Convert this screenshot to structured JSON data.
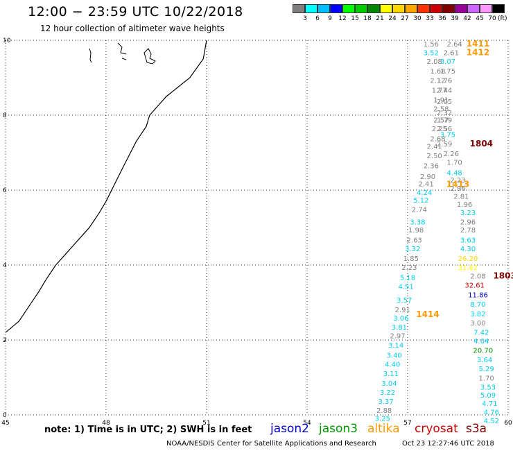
{
  "title": "12:00 − 23:59 UTC 10/22/2018",
  "subtitle": "12 hour collection of altimeter wave heights",
  "colorbar": {
    "colors": [
      "#7f7f7f",
      "#00ffff",
      "#00bfff",
      "#0000ff",
      "#00ff00",
      "#00cc00",
      "#008800",
      "#ffff00",
      "#ffd700",
      "#ffa500",
      "#ff3300",
      "#cc0000",
      "#800000",
      "#990099",
      "#cc66ff",
      "#ff99ff",
      "#000000"
    ],
    "ticks": [
      "3",
      "6",
      "9",
      "12",
      "15",
      "18",
      "21",
      "24",
      "27",
      "30",
      "33",
      "36",
      "39",
      "42",
      "45",
      "70"
    ],
    "unit": "(ft)"
  },
  "footer": {
    "note": "note:  1) Time is in UTC;  2) SWH is in feet",
    "credit": "NOAA/NESDIS Center for Satellite Applications and Research",
    "timestamp": "Oct 23 12:27:46 UTC 2018",
    "legend": [
      {
        "name": "jason2",
        "color": "#0000cc"
      },
      {
        "name": "jason3",
        "color": "#009900"
      },
      {
        "name": "altika",
        "color": "#ff9900"
      },
      {
        "name": "cryosat",
        "color": "#cc0000"
      },
      {
        "name": "s3a",
        "color": "#800000"
      }
    ]
  },
  "chart_data": {
    "type": "scatter",
    "xlim": [
      45,
      60
    ],
    "ylim": [
      0,
      10
    ],
    "xticks": [
      "45",
      "48",
      "51",
      "54",
      "57",
      "60"
    ],
    "yticks": [
      "0",
      "2",
      "4",
      "6",
      "8",
      "10"
    ],
    "grid": true,
    "coastline": [
      [
        51,
        10
      ],
      [
        50.9,
        9.5
      ],
      [
        50.5,
        9
      ],
      [
        49.8,
        8.5
      ],
      [
        49.3,
        8
      ],
      [
        49.2,
        7.7
      ],
      [
        48.9,
        7.3
      ],
      [
        48.5,
        6.6
      ],
      [
        48,
        5.7
      ],
      [
        47.8,
        5.4
      ],
      [
        47.5,
        5
      ],
      [
        47.2,
        4.7
      ],
      [
        47,
        4.5
      ],
      [
        46.8,
        4.3
      ],
      [
        46.5,
        4
      ],
      [
        46.2,
        3.6
      ],
      [
        46,
        3.3
      ],
      [
        45.7,
        2.9
      ],
      [
        45.4,
        2.5
      ],
      [
        45,
        2.2
      ]
    ],
    "labels": [
      {
        "x": 57.7,
        "y": 9.83,
        "text": "1.56",
        "color": "#7f7f7f"
      },
      {
        "x": 58.4,
        "y": 9.83,
        "text": "2.64",
        "color": "#7f7f7f"
      },
      {
        "x": 59.1,
        "y": 9.83,
        "text": "1411",
        "color": "#ff9900"
      },
      {
        "x": 57.7,
        "y": 9.6,
        "text": "3.52",
        "color": "#00ccee"
      },
      {
        "x": 58.3,
        "y": 9.6,
        "text": "2.61",
        "color": "#7f7f7f"
      },
      {
        "x": 59.1,
        "y": 9.6,
        "text": "1412",
        "color": "#ff9900"
      },
      {
        "x": 57.8,
        "y": 9.37,
        "text": "2.08",
        "color": "#7f7f7f"
      },
      {
        "x": 58.2,
        "y": 9.37,
        "text": "3.07",
        "color": "#00ccee"
      },
      {
        "x": 57.9,
        "y": 9.11,
        "text": "1.68",
        "color": "#7f7f7f"
      },
      {
        "x": 58.2,
        "y": 9.11,
        "text": "1.75",
        "color": "#7f7f7f"
      },
      {
        "x": 57.9,
        "y": 8.86,
        "text": "2.12",
        "color": "#7f7f7f"
      },
      {
        "x": 58.1,
        "y": 8.86,
        "text": "1.76",
        "color": "#7f7f7f"
      },
      {
        "x": 57.95,
        "y": 8.6,
        "text": "1.77",
        "color": "#7f7f7f"
      },
      {
        "x": 58.1,
        "y": 8.6,
        "text": "2.44",
        "color": "#7f7f7f"
      },
      {
        "x": 58.0,
        "y": 8.34,
        "text": "1.91",
        "color": "#7f7f7f"
      },
      {
        "x": 58.1,
        "y": 8.3,
        "text": "2.05",
        "color": "#7f7f7f"
      },
      {
        "x": 58.0,
        "y": 8.1,
        "text": "2.58",
        "color": "#7f7f7f"
      },
      {
        "x": 58.1,
        "y": 8.0,
        "text": "2.32",
        "color": "#7f7f7f"
      },
      {
        "x": 58.0,
        "y": 7.81,
        "text": "2.57",
        "color": "#7f7f7f"
      },
      {
        "x": 58.1,
        "y": 7.81,
        "text": "1.79",
        "color": "#7f7f7f"
      },
      {
        "x": 57.95,
        "y": 7.57,
        "text": "2.25",
        "color": "#7f7f7f"
      },
      {
        "x": 58.1,
        "y": 7.57,
        "text": "2.56",
        "color": "#7f7f7f"
      },
      {
        "x": 58.2,
        "y": 7.42,
        "text": "3.75",
        "color": "#00ccee"
      },
      {
        "x": 57.9,
        "y": 7.31,
        "text": "2.68",
        "color": "#7f7f7f"
      },
      {
        "x": 57.8,
        "y": 7.1,
        "text": "2.41",
        "color": "#7f7f7f"
      },
      {
        "x": 58.1,
        "y": 7.17,
        "text": "2.59",
        "color": "#7f7f7f"
      },
      {
        "x": 59.2,
        "y": 7.17,
        "text": "1804",
        "color": "#800000"
      },
      {
        "x": 57.8,
        "y": 6.85,
        "text": "2.50",
        "color": "#7f7f7f"
      },
      {
        "x": 58.3,
        "y": 6.91,
        "text": "2.26",
        "color": "#7f7f7f"
      },
      {
        "x": 57.7,
        "y": 6.58,
        "text": "2.36",
        "color": "#7f7f7f"
      },
      {
        "x": 58.4,
        "y": 6.68,
        "text": "1.70",
        "color": "#7f7f7f"
      },
      {
        "x": 57.6,
        "y": 6.3,
        "text": "2.90",
        "color": "#7f7f7f"
      },
      {
        "x": 58.4,
        "y": 6.4,
        "text": "4.48",
        "color": "#00ccee"
      },
      {
        "x": 58.5,
        "y": 6.2,
        "text": "2.23",
        "color": "#7f7f7f"
      },
      {
        "x": 57.55,
        "y": 6.1,
        "text": "2.41",
        "color": "#7f7f7f"
      },
      {
        "x": 58.5,
        "y": 6.08,
        "text": "1413",
        "color": "#ff9900"
      },
      {
        "x": 58.5,
        "y": 5.98,
        "text": "2.96",
        "color": "#7f7f7f"
      },
      {
        "x": 57.5,
        "y": 5.87,
        "text": "4.24",
        "color": "#00ccee"
      },
      {
        "x": 58.6,
        "y": 5.77,
        "text": "2.81",
        "color": "#7f7f7f"
      },
      {
        "x": 57.4,
        "y": 5.67,
        "text": "5.12",
        "color": "#00ccee"
      },
      {
        "x": 58.7,
        "y": 5.56,
        "text": "1.96",
        "color": "#7f7f7f"
      },
      {
        "x": 57.35,
        "y": 5.42,
        "text": "2.74",
        "color": "#7f7f7f"
      },
      {
        "x": 58.8,
        "y": 5.33,
        "text": "3.23",
        "color": "#00ccee"
      },
      {
        "x": 57.3,
        "y": 5.08,
        "text": "3.38",
        "color": "#00ccee"
      },
      {
        "x": 58.8,
        "y": 5.08,
        "text": "2.96",
        "color": "#7f7f7f"
      },
      {
        "x": 57.25,
        "y": 4.87,
        "text": "1.98",
        "color": "#7f7f7f"
      },
      {
        "x": 58.8,
        "y": 4.87,
        "text": "2.78",
        "color": "#7f7f7f"
      },
      {
        "x": 57.2,
        "y": 4.6,
        "text": "2.63",
        "color": "#7f7f7f"
      },
      {
        "x": 58.8,
        "y": 4.6,
        "text": "3.63",
        "color": "#00ccee"
      },
      {
        "x": 57.15,
        "y": 4.37,
        "text": "3.32",
        "color": "#00ccee"
      },
      {
        "x": 58.8,
        "y": 4.37,
        "text": "4.30",
        "color": "#00ccee"
      },
      {
        "x": 57.1,
        "y": 4.11,
        "text": "1.85",
        "color": "#7f7f7f"
      },
      {
        "x": 58.8,
        "y": 4.11,
        "text": "26.20",
        "color": "#ffd700"
      },
      {
        "x": 57.05,
        "y": 3.87,
        "text": "2.23",
        "color": "#7f7f7f"
      },
      {
        "x": 58.8,
        "y": 3.87,
        "text": "31.62",
        "color": "#ffff00"
      },
      {
        "x": 59.1,
        "y": 3.64,
        "text": "2.08",
        "color": "#7f7f7f"
      },
      {
        "x": 59.9,
        "y": 3.64,
        "text": "1803",
        "color": "#800000"
      },
      {
        "x": 57.0,
        "y": 3.6,
        "text": "5.18",
        "color": "#00ccee"
      },
      {
        "x": 59.0,
        "y": 3.4,
        "text": "32.61",
        "color": "#cc0000"
      },
      {
        "x": 56.95,
        "y": 3.36,
        "text": "4.51",
        "color": "#00ccee"
      },
      {
        "x": 59.1,
        "y": 3.14,
        "text": "11.86",
        "color": "#0000cc"
      },
      {
        "x": 56.9,
        "y": 3.0,
        "text": "3.57",
        "color": "#00ccee"
      },
      {
        "x": 59.1,
        "y": 2.89,
        "text": "8.70",
        "color": "#00ccee"
      },
      {
        "x": 56.85,
        "y": 2.74,
        "text": "2.91",
        "color": "#7f7f7f"
      },
      {
        "x": 59.1,
        "y": 2.63,
        "text": "3.82",
        "color": "#00ccee"
      },
      {
        "x": 57.6,
        "y": 2.61,
        "text": "1414",
        "color": "#ff9900"
      },
      {
        "x": 56.8,
        "y": 2.52,
        "text": "3.06",
        "color": "#00ccee"
      },
      {
        "x": 59.1,
        "y": 2.39,
        "text": "3.00",
        "color": "#7f7f7f"
      },
      {
        "x": 56.75,
        "y": 2.28,
        "text": "3.81",
        "color": "#00ccee"
      },
      {
        "x": 59.2,
        "y": 2.14,
        "text": "7.42",
        "color": "#00ccee"
      },
      {
        "x": 56.7,
        "y": 2.05,
        "text": "2.97",
        "color": "#7f7f7f"
      },
      {
        "x": 59.2,
        "y": 1.91,
        "text": "4.04",
        "color": "#00ccee"
      },
      {
        "x": 56.65,
        "y": 1.8,
        "text": "3.14",
        "color": "#00ccee"
      },
      {
        "x": 59.25,
        "y": 1.66,
        "text": "20.70",
        "color": "#009900"
      },
      {
        "x": 56.6,
        "y": 1.53,
        "text": "3.40",
        "color": "#00ccee"
      },
      {
        "x": 59.3,
        "y": 1.41,
        "text": "3.64",
        "color": "#00ccee"
      },
      {
        "x": 56.55,
        "y": 1.29,
        "text": "4.40",
        "color": "#00ccee"
      },
      {
        "x": 59.35,
        "y": 1.17,
        "text": "5.29",
        "color": "#00ccee"
      },
      {
        "x": 56.5,
        "y": 1.04,
        "text": "3.11",
        "color": "#00ccee"
      },
      {
        "x": 59.35,
        "y": 0.92,
        "text": "1.70",
        "color": "#7f7f7f"
      },
      {
        "x": 56.45,
        "y": 0.78,
        "text": "3.04",
        "color": "#00ccee"
      },
      {
        "x": 59.4,
        "y": 0.68,
        "text": "3.53",
        "color": "#00ccee"
      },
      {
        "x": 56.4,
        "y": 0.54,
        "text": "3.22",
        "color": "#00ccee"
      },
      {
        "x": 59.4,
        "y": 0.46,
        "text": "5.09",
        "color": "#00ccee"
      },
      {
        "x": 56.35,
        "y": 0.3,
        "text": "3.37",
        "color": "#00ccee"
      },
      {
        "x": 59.45,
        "y": 0.24,
        "text": "4.71",
        "color": "#00ccee"
      },
      {
        "x": 56.3,
        "y": 0.06,
        "text": "2.88",
        "color": "#7f7f7f"
      },
      {
        "x": 59.5,
        "y": 0.01,
        "text": "4.76",
        "color": "#00ccee"
      },
      {
        "x": 56.25,
        "y": -0.16,
        "text": "3.25",
        "color": "#00ccee"
      },
      {
        "x": 59.5,
        "y": -0.22,
        "text": "4.52",
        "color": "#00ccee"
      }
    ]
  }
}
